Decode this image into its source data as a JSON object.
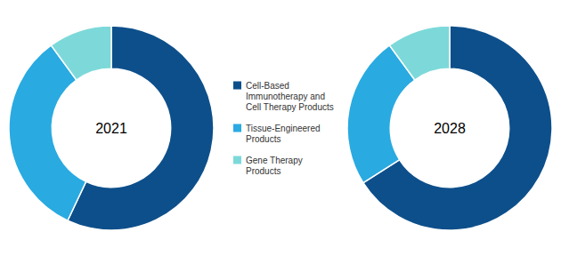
{
  "chart_data": [
    {
      "type": "pie",
      "title": "2021",
      "categories": [
        "Cell-Based\nImmunotherapy and\nCell Therapy Products",
        "Tissue-Engineered\nProducts",
        "Gene Therapy\nProducts"
      ],
      "values": [
        57,
        33,
        10
      ],
      "colors": [
        "#0d4f8b",
        "#29aae1",
        "#7dd9d9"
      ],
      "legend": "center"
    },
    {
      "type": "pie",
      "title": "2028",
      "categories": [
        "Cell-Based\nImmunotherapy and\nCell Therapy Products",
        "Tissue-Engineered\nProducts",
        "Gene Therapy\nProducts"
      ],
      "values": [
        66,
        24,
        10
      ],
      "colors": [
        "#0d4f8b",
        "#29aae1",
        "#7dd9d9"
      ]
    }
  ]
}
